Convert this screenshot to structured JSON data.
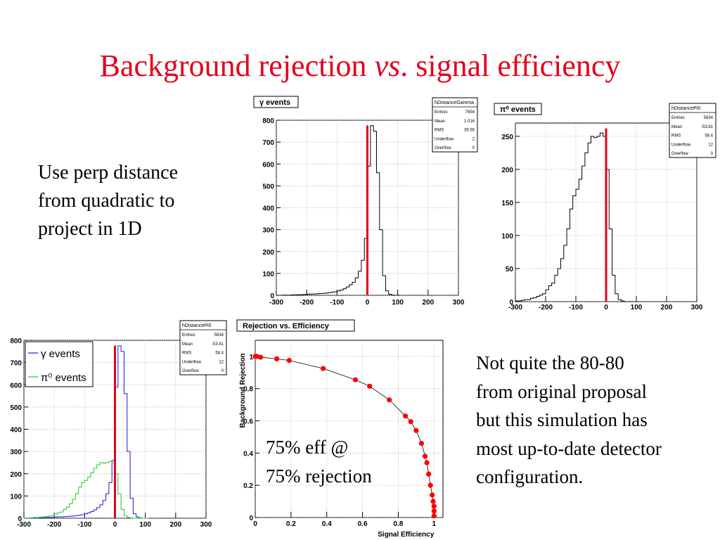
{
  "slide": {
    "title_main": "Background rejection ",
    "title_italic": "vs",
    "title_rest": ". signal efficiency",
    "note_left": [
      "Use perp distance",
      "from quadratic to",
      "project in 1D"
    ],
    "note_right": [
      "Not quite the 80-80",
      "from original proposal",
      "but this simulation has",
      "most up-to-date detector",
      "configuration."
    ],
    "overlay": [
      "75% eff @",
      "75% rejection"
    ]
  },
  "colors": {
    "title": "#e3001b",
    "cut_line": "#e3001b",
    "gamma_hist": "#1a1adb",
    "pi0_hist": "#22cc22",
    "marker": "#ff0000"
  },
  "chart_data": [
    {
      "type": "bar",
      "title": "γ events",
      "xlim": [
        -300,
        300
      ],
      "ylim": [
        0,
        800
      ],
      "xticks": [
        -300,
        -200,
        -100,
        0,
        100,
        200,
        300
      ],
      "yticks": [
        0,
        100,
        200,
        300,
        400,
        500,
        600,
        700,
        800
      ],
      "bin_width": 10,
      "bin_low_edges": [
        -300,
        -290,
        -280,
        -270,
        -260,
        -250,
        -240,
        -230,
        -220,
        -210,
        -200,
        -190,
        -180,
        -170,
        -160,
        -150,
        -140,
        -130,
        -120,
        -110,
        -100,
        -90,
        -80,
        -70,
        -60,
        -50,
        -40,
        -30,
        -20,
        -10,
        0,
        10,
        20,
        30,
        40,
        50,
        60,
        70,
        80,
        90,
        100
      ],
      "values": [
        0,
        0,
        1,
        1,
        1,
        2,
        2,
        3,
        3,
        4,
        5,
        6,
        6,
        7,
        8,
        9,
        10,
        12,
        14,
        16,
        20,
        24,
        30,
        38,
        48,
        60,
        80,
        110,
        160,
        260,
        590,
        775,
        750,
        560,
        300,
        90,
        20,
        5,
        1,
        0,
        0
      ],
      "cut_x": 0,
      "stats": {
        "name": "hDistanceGamma",
        "rows": [
          [
            "Entries",
            "7654"
          ],
          [
            "Mean",
            "1.016"
          ],
          [
            "RMS",
            "39.55"
          ],
          [
            "Underflow",
            "2"
          ],
          [
            "Overflow",
            "0"
          ]
        ]
      }
    },
    {
      "type": "bar",
      "title": "π⁰ events",
      "xlim": [
        -300,
        300
      ],
      "ylim": [
        0,
        270
      ],
      "xticks": [
        -300,
        -200,
        -100,
        0,
        100,
        200,
        300
      ],
      "yticks": [
        0,
        50,
        100,
        150,
        200,
        250
      ],
      "bin_width": 10,
      "bin_low_edges": [
        -300,
        -290,
        -280,
        -270,
        -260,
        -250,
        -240,
        -230,
        -220,
        -210,
        -200,
        -190,
        -180,
        -170,
        -160,
        -150,
        -140,
        -130,
        -120,
        -110,
        -100,
        -90,
        -80,
        -70,
        -60,
        -50,
        -40,
        -30,
        -20,
        -10,
        0,
        10,
        20,
        30,
        40,
        50,
        60,
        70,
        80,
        90,
        100
      ],
      "values": [
        1,
        1,
        2,
        3,
        3,
        5,
        6,
        8,
        10,
        12,
        18,
        24,
        28,
        40,
        50,
        65,
        85,
        110,
        140,
        160,
        170,
        185,
        205,
        225,
        240,
        250,
        248,
        250,
        255,
        250,
        200,
        110,
        40,
        12,
        3,
        1,
        0,
        0,
        0,
        0,
        0
      ],
      "cut_x": 0,
      "stats": {
        "name": "hDistancePi0",
        "rows": [
          [
            "Entries",
            "5834"
          ],
          [
            "Mean",
            "-53.81"
          ],
          [
            "RMS",
            "58.4"
          ],
          [
            "Underflow",
            "12"
          ],
          [
            "Overflow",
            "0"
          ]
        ]
      }
    },
    {
      "type": "line",
      "xlim": [
        -300,
        300
      ],
      "ylim": [
        0,
        800
      ],
      "xticks": [
        -300,
        -200,
        -100,
        0,
        100,
        200,
        300
      ],
      "yticks": [
        0,
        100,
        200,
        300,
        400,
        500,
        600,
        700,
        800
      ],
      "bin_width": 10,
      "bin_low_edges": [
        -300,
        -290,
        -280,
        -270,
        -260,
        -250,
        -240,
        -230,
        -220,
        -210,
        -200,
        -190,
        -180,
        -170,
        -160,
        -150,
        -140,
        -130,
        -120,
        -110,
        -100,
        -90,
        -80,
        -70,
        -60,
        -50,
        -40,
        -30,
        -20,
        -10,
        0,
        10,
        20,
        30,
        40,
        50,
        60,
        70,
        80,
        90,
        100
      ],
      "series": [
        {
          "name": "γ events",
          "color": "#1a1adb",
          "values": [
            0,
            0,
            1,
            1,
            1,
            2,
            2,
            3,
            3,
            4,
            5,
            6,
            6,
            7,
            8,
            9,
            10,
            12,
            14,
            16,
            20,
            24,
            30,
            38,
            48,
            60,
            80,
            110,
            160,
            260,
            590,
            775,
            750,
            560,
            300,
            90,
            20,
            5,
            1,
            0,
            0
          ]
        },
        {
          "name": "π⁰ events",
          "color": "#22cc22",
          "values": [
            1,
            1,
            2,
            3,
            3,
            5,
            6,
            8,
            10,
            12,
            18,
            24,
            28,
            40,
            50,
            65,
            85,
            110,
            140,
            160,
            170,
            185,
            205,
            225,
            240,
            250,
            248,
            250,
            255,
            250,
            200,
            110,
            40,
            12,
            3,
            1,
            0,
            0,
            0,
            0,
            0
          ]
        }
      ],
      "cut_x": 0,
      "legend": "top-left",
      "stats": {
        "name": "hDistancePi0",
        "rows": [
          [
            "Entries",
            "5834"
          ],
          [
            "Mean",
            "-53.81"
          ],
          [
            "RMS",
            "58.4"
          ],
          [
            "Underflow",
            "12"
          ],
          [
            "Overflow",
            "0"
          ]
        ]
      }
    },
    {
      "type": "scatter",
      "title": "Rejection vs. Efficiency",
      "xlabel": "Signal Efficiency",
      "ylabel": "Background Rejection",
      "xlim": [
        0,
        1.05
      ],
      "ylim": [
        0,
        1.1
      ],
      "xticks": [
        0,
        0.2,
        0.4,
        0.6,
        0.8,
        1
      ],
      "yticks": [
        0,
        0.2,
        0.4,
        0.6,
        0.8,
        1
      ],
      "xtick_labels": [
        "0",
        "0.2",
        "0.4",
        "0.6",
        "0.8",
        "1"
      ],
      "ytick_labels": [
        "0",
        "0.2",
        "0.4",
        "0.6",
        "0.8",
        "1"
      ],
      "x": [
        0.0,
        0.01,
        0.03,
        0.12,
        0.19,
        0.38,
        0.56,
        0.64,
        0.75,
        0.84,
        0.87,
        0.9,
        0.93,
        0.95,
        0.96,
        0.97,
        0.98,
        0.99,
        0.995,
        1.0,
        1.0,
        1.0
      ],
      "y": [
        1.0,
        1.0,
        0.995,
        0.985,
        0.975,
        0.925,
        0.855,
        0.815,
        0.73,
        0.63,
        0.595,
        0.54,
        0.46,
        0.38,
        0.34,
        0.27,
        0.2,
        0.14,
        0.1,
        0.07,
        0.04,
        0.01
      ]
    }
  ]
}
